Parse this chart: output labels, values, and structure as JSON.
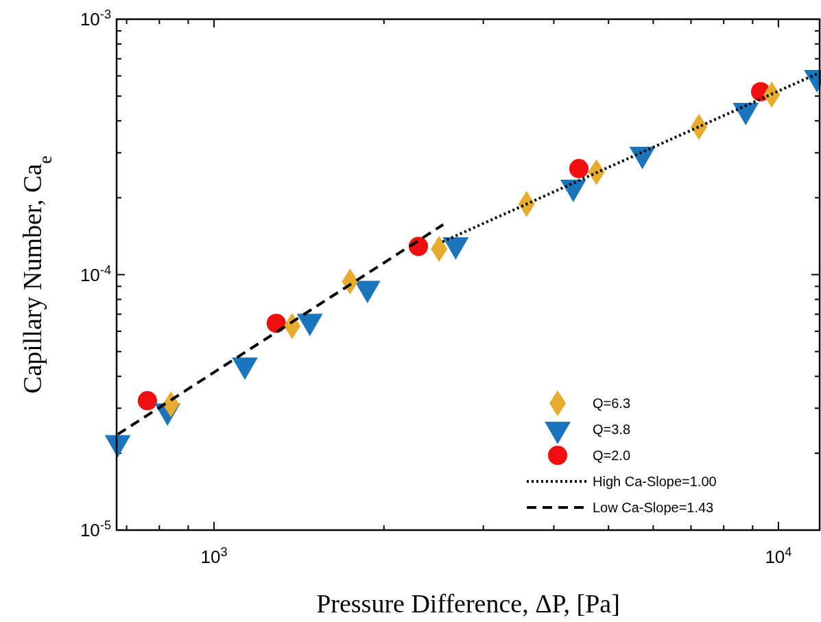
{
  "chart_data": {
    "type": "scatter",
    "xlabel": "Pressure Difference, ΔP, [Pa]",
    "ylabel": "Capillary Number, Ca$_{e}$",
    "log": "xy",
    "grid": false,
    "legend": "bottom right",
    "xlim": [
      672,
      11830
    ],
    "ylim": [
      1e-05,
      0.001
    ],
    "xticks": [
      {
        "value": 700,
        "label": null
      },
      {
        "value": 800,
        "label": null
      },
      {
        "value": 900,
        "label": null
      },
      {
        "value": 1000,
        "label": "10$^{3}$"
      },
      {
        "value": 2000,
        "label": null
      },
      {
        "value": 3000,
        "label": null
      },
      {
        "value": 4000,
        "label": null
      },
      {
        "value": 5000,
        "label": null
      },
      {
        "value": 6000,
        "label": null
      },
      {
        "value": 7000,
        "label": null
      },
      {
        "value": 8000,
        "label": null
      },
      {
        "value": 9000,
        "label": null
      },
      {
        "value": 10000,
        "label": "10$^{4}$"
      }
    ],
    "yticks": [
      {
        "value": 1e-05,
        "label": "10$^{-5}$"
      },
      {
        "value": 2e-05,
        "label": null
      },
      {
        "value": 3e-05,
        "label": null
      },
      {
        "value": 4e-05,
        "label": null
      },
      {
        "value": 5e-05,
        "label": null
      },
      {
        "value": 6e-05,
        "label": null
      },
      {
        "value": 7e-05,
        "label": null
      },
      {
        "value": 8e-05,
        "label": null
      },
      {
        "value": 9e-05,
        "label": null
      },
      {
        "value": 0.0001,
        "label": "10$^{-4}$"
      },
      {
        "value": 0.0002,
        "label": null
      },
      {
        "value": 0.0003,
        "label": null
      },
      {
        "value": 0.0004,
        "label": null
      },
      {
        "value": 0.0005,
        "label": null
      },
      {
        "value": 0.0006,
        "label": null
      },
      {
        "value": 0.0007,
        "label": null
      },
      {
        "value": 0.0008,
        "label": null
      },
      {
        "value": 0.0009,
        "label": null
      },
      {
        "value": 0.001,
        "label": "10$^{-3}$"
      }
    ],
    "series": [
      {
        "name": "Q=6.3",
        "marker": "diamond",
        "color": "#e6ac2e",
        "x": [
          839,
          1375,
          1742,
          2505,
          3580,
          4760,
          7230,
          9730
        ],
        "values": [
          3.11e-05,
          6.29e-05,
          9.4e-05,
          0.000126,
          0.000189,
          0.000252,
          0.000379,
          0.000507
        ]
      },
      {
        "name": "Q=3.8",
        "marker": "triangle",
        "color": "#1a75bc",
        "x": [
          675,
          827,
          1134,
          1478,
          1870,
          2680,
          4330,
          5740,
          8750,
          11700
        ],
        "values": [
          2.2e-05,
          2.93e-05,
          4.43e-05,
          6.57e-05,
          8.84e-05,
          0.000131,
          0.00022,
          0.000296,
          0.00044,
          0.000592
        ]
      },
      {
        "name": "Q=2.0",
        "marker": "circle",
        "color": "#f00f0f",
        "x": [
          762,
          1289,
          2302,
          4430,
          9300
        ],
        "values": [
          3.21e-05,
          6.45e-05,
          0.000129,
          0.00026,
          0.00052
        ]
      },
      {
        "name": "High Ca-Slope=1.00",
        "type": "line",
        "marker": "none",
        "line_style": "dotted",
        "color": "#000000",
        "x": [
          2540,
          11830
        ],
        "values": [
          0.0001345,
          0.000618
        ]
      },
      {
        "name": "Low Ca-Slope=1.43",
        "type": "line",
        "marker": "none",
        "line_style": "dashed",
        "color": "#000000",
        "x": [
          675,
          2547
        ],
        "values": [
          2.37e-05,
          0.000157
        ]
      }
    ]
  }
}
